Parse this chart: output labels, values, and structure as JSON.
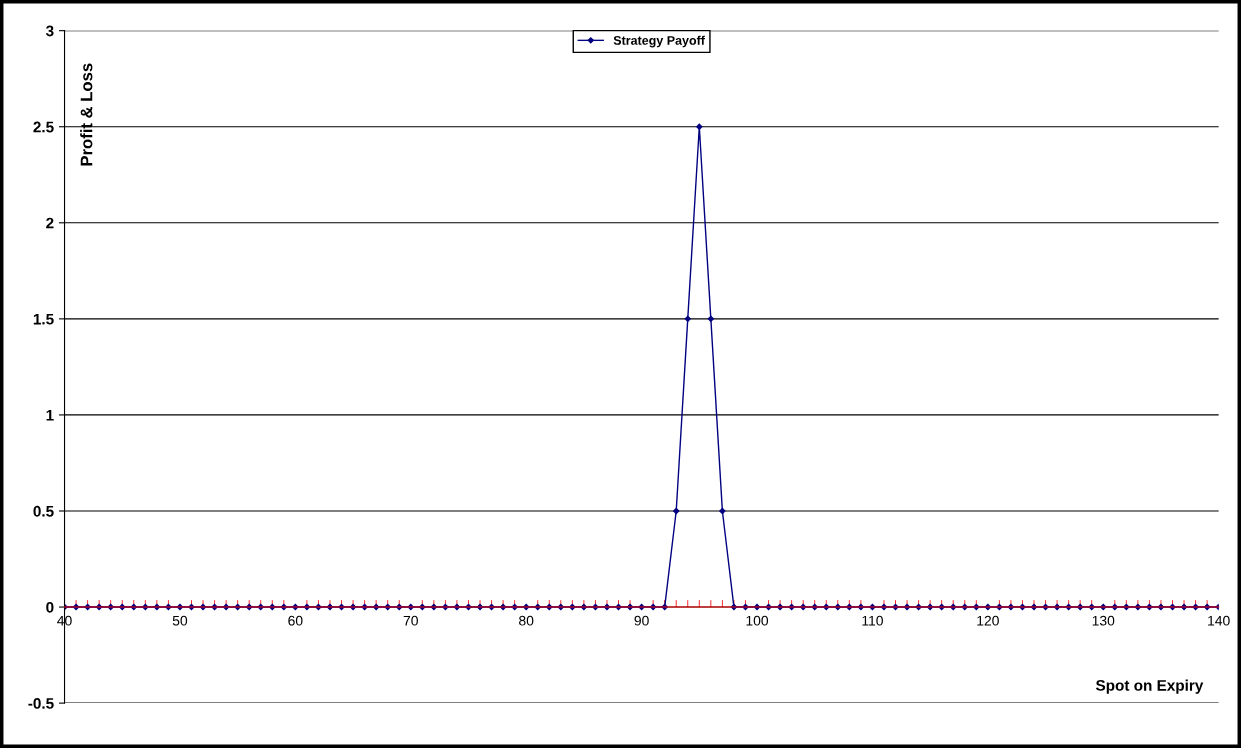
{
  "chart_data": {
    "type": "line",
    "xlabel": "Spot on Expiry",
    "ylabel": "Profit & Loss",
    "x": [
      40,
      41,
      42,
      43,
      44,
      45,
      46,
      47,
      48,
      49,
      50,
      51,
      52,
      53,
      54,
      55,
      56,
      57,
      58,
      59,
      60,
      61,
      62,
      63,
      64,
      65,
      66,
      67,
      68,
      69,
      70,
      71,
      72,
      73,
      74,
      75,
      76,
      77,
      78,
      79,
      80,
      81,
      82,
      83,
      84,
      85,
      86,
      87,
      88,
      89,
      90,
      91,
      92,
      93,
      94,
      95,
      96,
      97,
      98,
      99,
      100,
      101,
      102,
      103,
      104,
      105,
      106,
      107,
      108,
      109,
      110,
      111,
      112,
      113,
      114,
      115,
      116,
      117,
      118,
      119,
      120,
      121,
      122,
      123,
      124,
      125,
      126,
      127,
      128,
      129,
      130,
      131,
      132,
      133,
      134,
      135,
      136,
      137,
      138,
      139,
      140
    ],
    "series": [
      {
        "name": "Strategy Payoff",
        "color": "#000080",
        "values": [
          0,
          0,
          0,
          0,
          0,
          0,
          0,
          0,
          0,
          0,
          0,
          0,
          0,
          0,
          0,
          0,
          0,
          0,
          0,
          0,
          0,
          0,
          0,
          0,
          0,
          0,
          0,
          0,
          0,
          0,
          0,
          0,
          0,
          0,
          0,
          0,
          0,
          0,
          0,
          0,
          0,
          0,
          0,
          0,
          0,
          0,
          0,
          0,
          0,
          0,
          0,
          0,
          0,
          0.5,
          1.5,
          2.5,
          1.5,
          0.5,
          0,
          0,
          0,
          0,
          0,
          0,
          0,
          0,
          0,
          0,
          0,
          0,
          0,
          0,
          0,
          0,
          0,
          0,
          0,
          0,
          0,
          0,
          0,
          0,
          0,
          0,
          0,
          0,
          0,
          0,
          0,
          0,
          0,
          0,
          0,
          0,
          0,
          0,
          0,
          0,
          0,
          0,
          0
        ]
      }
    ],
    "xlim": [
      40,
      140
    ],
    "xticks": [
      40,
      50,
      60,
      70,
      80,
      90,
      100,
      110,
      120,
      130,
      140
    ],
    "ylim": [
      -0.5,
      3
    ],
    "yticks": [
      -0.5,
      0,
      0.5,
      1,
      1.5,
      2,
      2.5,
      3
    ],
    "grid": "y",
    "legend": "top",
    "marker": "diamond",
    "line_style": "solid"
  }
}
